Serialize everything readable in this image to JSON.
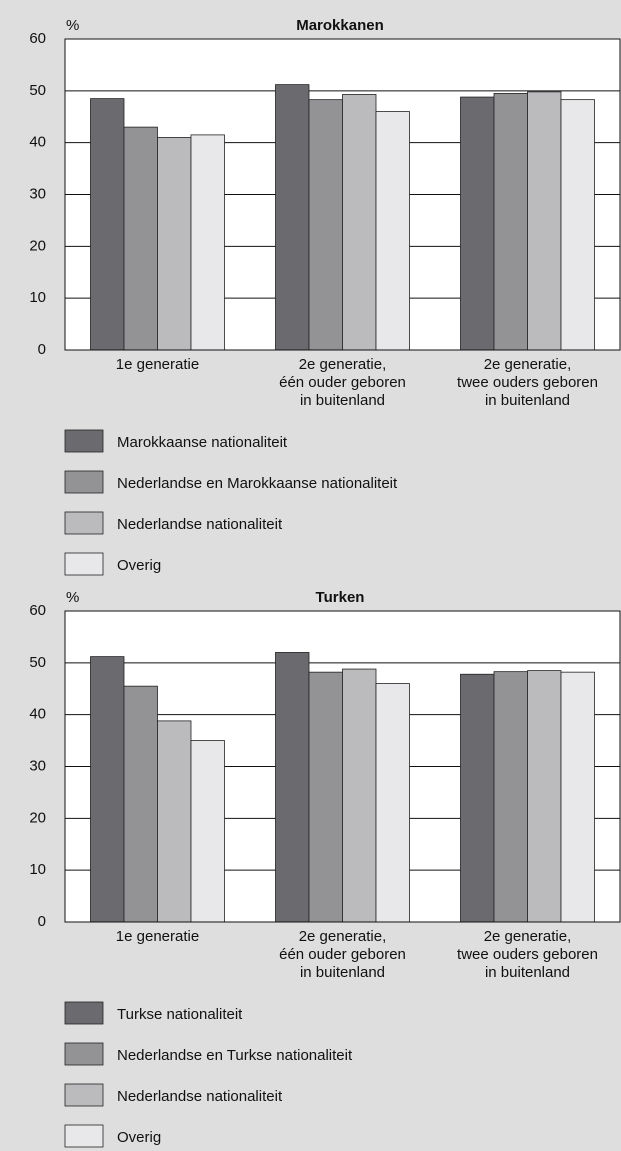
{
  "chart_data": [
    {
      "type": "bar",
      "title": "Marokkanen",
      "y_label": "%",
      "categories": [
        "1e generatie",
        "2e generatie,\néén ouder geboren\nin buitenland",
        "2e generatie,\ntwee ouders geboren\nin buitenland"
      ],
      "series": [
        {
          "name": "Marokkaanse nationaliteit",
          "color": "#6b6b6f",
          "values": [
            48.5,
            51.2,
            48.8
          ]
        },
        {
          "name": "Nederlandse en Marokkaanse nationaliteit",
          "color": "#939396",
          "values": [
            43,
            48.3,
            49.5
          ]
        },
        {
          "name": "Nederlandse nationaliteit",
          "color": "#bbbbbe",
          "values": [
            41,
            49.3,
            49.8
          ]
        },
        {
          "name": "Overig",
          "color": "#e8e8ea",
          "values": [
            41.5,
            46,
            48.3
          ]
        }
      ],
      "ylim": [
        0,
        60
      ],
      "yticks": [
        0,
        10,
        20,
        30,
        40,
        50,
        60
      ],
      "grid": true
    },
    {
      "type": "bar",
      "title": "Turken",
      "y_label": "%",
      "categories": [
        "1e generatie",
        "2e generatie,\néén ouder geboren\nin buitenland",
        "2e generatie,\ntwee ouders geboren\nin buitenland"
      ],
      "series": [
        {
          "name": "Turkse nationaliteit",
          "color": "#6b6b6f",
          "values": [
            51.2,
            52,
            47.8
          ]
        },
        {
          "name": "Nederlandse en Turkse nationaliteit",
          "color": "#939396",
          "values": [
            45.5,
            48.2,
            48.3
          ]
        },
        {
          "name": "Nederlandse nationaliteit",
          "color": "#bbbbbe",
          "values": [
            38.8,
            48.8,
            48.5
          ]
        },
        {
          "name": "Overig",
          "color": "#e8e8ea",
          "values": [
            35,
            46,
            48.2
          ]
        }
      ],
      "ylim": [
        0,
        60
      ],
      "yticks": [
        0,
        10,
        20,
        30,
        40,
        50,
        60
      ],
      "grid": true
    }
  ]
}
